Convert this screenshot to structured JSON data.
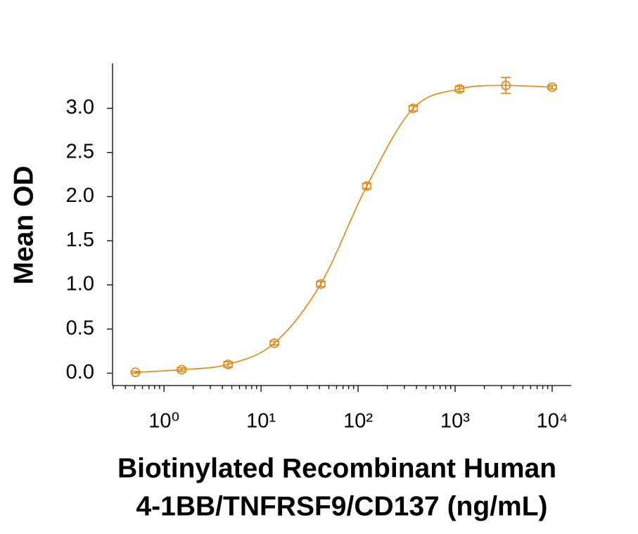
{
  "chart_data": {
    "type": "scatter",
    "xlabel": [
      "Biotinylated Recombinant Human",
      "4-1BB/TNFRSF9/CD137 (ng/mL)"
    ],
    "ylabel": "Mean OD",
    "log_x": true,
    "minor_ticks": true,
    "fit_curve": true,
    "xlim": [
      0.295,
      15700
    ],
    "ylim": [
      -0.14,
      3.51
    ],
    "xticks": [
      {
        "value": 1,
        "label": "10⁰"
      },
      {
        "value": 10,
        "label": "10¹"
      },
      {
        "value": 100,
        "label": "10²"
      },
      {
        "value": 1000,
        "label": "10³"
      },
      {
        "value": 10000,
        "label": "10⁴"
      }
    ],
    "yticks": [
      {
        "value": 0,
        "label": "0.0"
      },
      {
        "value": 0.5,
        "label": "0.5"
      },
      {
        "value": 1,
        "label": "1.0"
      },
      {
        "value": 1.5,
        "label": "1.5"
      },
      {
        "value": 2,
        "label": "2.0"
      },
      {
        "value": 2.5,
        "label": "2.5"
      },
      {
        "value": 3,
        "label": "3.0"
      }
    ],
    "series": [
      {
        "color": "#e0880f",
        "x": [
          0.508,
          1.52,
          4.57,
          13.7,
          41.2,
          123,
          370,
          1111,
          3333,
          10000
        ],
        "values": [
          0.01,
          0.04,
          0.1,
          0.34,
          1.01,
          2.12,
          3.0,
          3.22,
          3.26,
          3.24
        ],
        "errors": [
          0.01,
          0.02,
          0.03,
          0.02,
          0.03,
          0.03,
          0.03,
          0.03,
          0.09,
          0.02
        ]
      }
    ]
  }
}
